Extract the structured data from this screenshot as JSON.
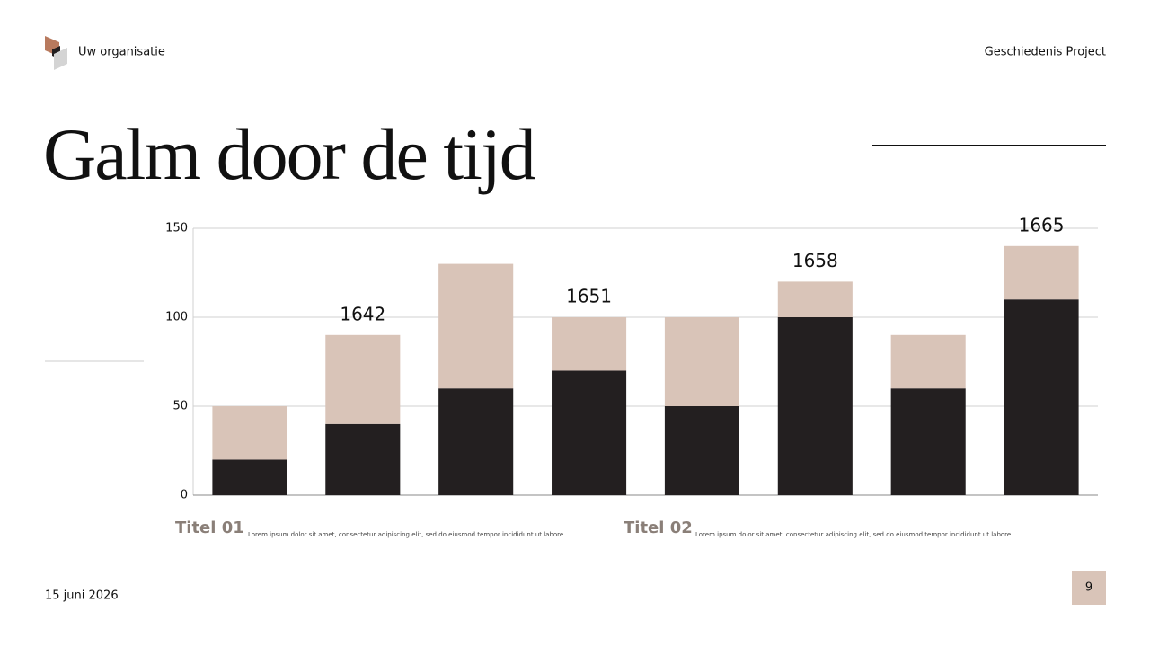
{
  "header": {
    "organization": "Uw organisatie",
    "project": "Geschiedenis Project"
  },
  "title": "Galm door de tijd",
  "chart_data": {
    "type": "bar",
    "stacked": true,
    "categories": [
      null,
      null,
      null,
      null,
      null,
      null,
      null,
      null
    ],
    "series": [
      {
        "color": "#231f20",
        "values": [
          20,
          40,
          60,
          70,
          50,
          100,
          60,
          110
        ]
      },
      {
        "color": "#d9c4b8",
        "values": [
          30,
          50,
          70,
          30,
          50,
          20,
          30,
          30
        ]
      }
    ],
    "annotations": [
      null,
      "1642",
      null,
      "1651",
      null,
      "1658",
      null,
      "1665"
    ],
    "ylim": [
      0,
      150
    ],
    "yticks": [
      0,
      50,
      100,
      150
    ],
    "grid": true
  },
  "captions": [
    {
      "title": "Titel 01",
      "text": "Lorem ipsum dolor sit amet, consectetur adipiscing elit, sed do eiusmod tempor incididunt ut labore."
    },
    {
      "title": "Titel 02",
      "text": "Lorem ipsum dolor sit amet, consectetur adipiscing elit, sed do eiusmod tempor incididunt ut labore."
    }
  ],
  "footer": {
    "date": "15 juni 2026",
    "page": "9"
  }
}
